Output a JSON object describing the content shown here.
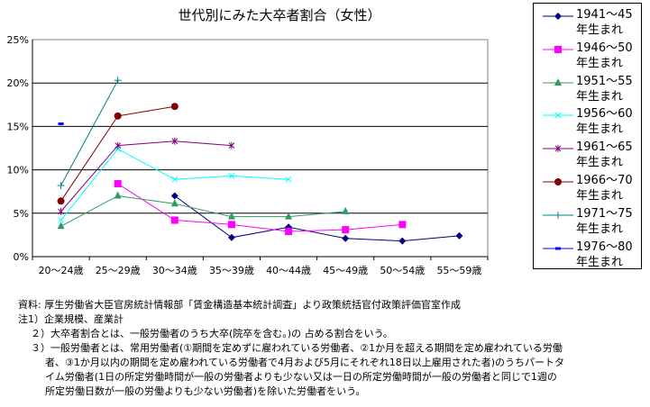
{
  "chart_data": {
    "type": "line",
    "title": "世代別にみた大卒者割合（女性）",
    "categories": [
      "20～24歳",
      "25～29歳",
      "30～34歳",
      "35～39歳",
      "40～44歳",
      "45～49歳",
      "50～54歳",
      "55～59歳"
    ],
    "ylim": [
      0,
      25
    ],
    "yticks": [
      "0%",
      "5%",
      "10%",
      "15%",
      "20%",
      "25%"
    ],
    "grid": true,
    "legend_position": "right",
    "series": [
      {
        "name": "1941～45\n年生まれ",
        "line1": "1941～45",
        "line2": "年生まれ",
        "color": "#000080",
        "marker": "diamond",
        "values": [
          null,
          null,
          7.0,
          2.2,
          3.4,
          2.1,
          1.8,
          2.4
        ]
      },
      {
        "name": "1946～50\n年生まれ",
        "line1": "1946～50",
        "line2": "年生まれ",
        "color": "#FF00FF",
        "marker": "square",
        "values": [
          null,
          8.4,
          4.2,
          3.7,
          2.9,
          3.1,
          3.7,
          null
        ]
      },
      {
        "name": "1951～55\n年生まれ",
        "line1": "1951～55",
        "line2": "年生まれ",
        "color": "#339966",
        "marker": "triangle",
        "values": [
          3.5,
          7.0,
          6.1,
          4.6,
          4.6,
          5.2,
          null,
          null
        ]
      },
      {
        "name": "1956～60\n年生まれ",
        "line1": "1956～60",
        "line2": "年生まれ",
        "color": "#00FFFF",
        "marker": "x",
        "values": [
          4.2,
          12.4,
          8.9,
          9.3,
          8.9,
          null,
          null,
          null
        ]
      },
      {
        "name": "1961～65\n年生まれ",
        "line1": "1961～65",
        "line2": "年生まれ",
        "color": "#800080",
        "marker": "star",
        "values": [
          5.2,
          12.8,
          13.3,
          12.8,
          null,
          null,
          null,
          null
        ]
      },
      {
        "name": "1966～70\n年生まれ",
        "line1": "1966～70",
        "line2": "年生まれ",
        "color": "#800000",
        "marker": "circle",
        "values": [
          6.4,
          16.2,
          17.3,
          null,
          null,
          null,
          null,
          null
        ]
      },
      {
        "name": "1971～75\n年生まれ",
        "line1": "1971～75",
        "line2": "年生まれ",
        "color": "#008080",
        "marker": "plus",
        "values": [
          8.2,
          20.3,
          null,
          null,
          null,
          null,
          null,
          null
        ]
      },
      {
        "name": "1976～80\n年生まれ",
        "line1": "1976～80",
        "line2": "年生まれ",
        "color": "#0000FF",
        "marker": "dash",
        "values": [
          15.3,
          null,
          null,
          null,
          null,
          null,
          null,
          null
        ]
      }
    ]
  },
  "notes": {
    "source": "資料: 厚生労働省大臣官房統計情報部「賃金構造基本統計調査」より政策統括官付政策評価官室作成",
    "n1": "注1）企業規模、産業計",
    "n2": "２）大卒者割合とは、一般労働者のうち大卒(院卒を含む。)の 占める割合をいう。",
    "n3a": "３）一般労働者とは、常用労働者(①期間を定めずに雇われている労働者、②1か月を超える期間を定め雇われている労働",
    "n3b": "者、③1か月以内の期間を定め雇われている労働者で4月および5月にそれぞれ18日以上雇用された者)のうちパートタ",
    "n3c": "イム労働者(1日の所定労働時間が一般の労働者よりも少ない又は一日の所定労働時間が一般の労働者と同じで1週の",
    "n3d": "所定労働日数が一般の労働よりも少ない労働者)を除いた労働者をいう。"
  }
}
